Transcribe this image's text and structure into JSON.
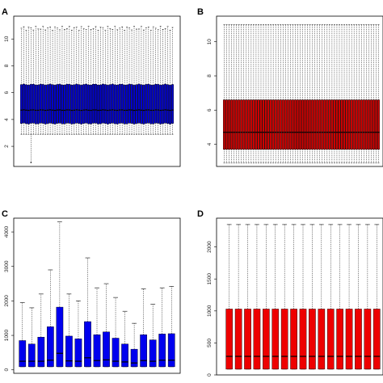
{
  "chart_data": [
    {
      "panel_label": "A",
      "type": "boxplot",
      "color": "#0000cc",
      "ylim": [
        0.5,
        11.7
      ],
      "yticks": [
        2,
        4,
        6,
        8,
        10
      ],
      "grid": false,
      "box_count": 64,
      "median": 4.7,
      "q1": 3.7,
      "q3": 6.6,
      "whisker_low": 2.9,
      "whisker_high": 10.8,
      "outlier_min": 0.8
    },
    {
      "panel_label": "B",
      "type": "boxplot",
      "color": "#cc0000",
      "ylim": [
        2.7,
        11.5
      ],
      "yticks": [
        4,
        6,
        8,
        10
      ],
      "grid": false,
      "box_count": 64,
      "median": 4.7,
      "q1": 3.7,
      "q3": 6.6,
      "whisker_low": 2.9,
      "whisker_high": 11.0
    },
    {
      "panel_label": "C",
      "type": "boxplot",
      "color": "#0000ee",
      "ylim": [
        -100,
        4400
      ],
      "yticks": [
        0,
        1000,
        2000,
        3000,
        4000
      ],
      "grid": false,
      "boxes": [
        {
          "q3": 850,
          "median": 250,
          "q1": 90,
          "whisker_high": 1950
        },
        {
          "q3": 750,
          "median": 250,
          "q1": 90,
          "whisker_high": 1800
        },
        {
          "q3": 950,
          "median": 250,
          "q1": 90,
          "whisker_high": 2200
        },
        {
          "q3": 1250,
          "median": 280,
          "q1": 90,
          "whisker_high": 2900
        },
        {
          "q3": 1820,
          "median": 480,
          "q1": 90,
          "whisker_high": 4300
        },
        {
          "q3": 980,
          "median": 260,
          "q1": 90,
          "whisker_high": 2200
        },
        {
          "q3": 900,
          "median": 250,
          "q1": 90,
          "whisker_high": 2000
        },
        {
          "q3": 1400,
          "median": 350,
          "q1": 90,
          "whisker_high": 3250
        },
        {
          "q3": 1020,
          "median": 270,
          "q1": 90,
          "whisker_high": 2380
        },
        {
          "q3": 1100,
          "median": 290,
          "q1": 90,
          "whisker_high": 2500
        },
        {
          "q3": 920,
          "median": 250,
          "q1": 90,
          "whisker_high": 2100
        },
        {
          "q3": 750,
          "median": 230,
          "q1": 90,
          "whisker_high": 1700
        },
        {
          "q3": 600,
          "median": 200,
          "q1": 90,
          "whisker_high": 1350
        },
        {
          "q3": 1020,
          "median": 270,
          "q1": 90,
          "whisker_high": 2350
        },
        {
          "q3": 870,
          "median": 250,
          "q1": 90,
          "whisker_high": 1900
        },
        {
          "q3": 1040,
          "median": 280,
          "q1": 90,
          "whisker_high": 2380
        },
        {
          "q3": 1050,
          "median": 280,
          "q1": 90,
          "whisker_high": 2420
        }
      ]
    },
    {
      "panel_label": "D",
      "type": "boxplot",
      "color": "#ee0000",
      "ylim": [
        0,
        2450
      ],
      "yticks": [
        0,
        500,
        1000,
        1500,
        2000
      ],
      "grid": false,
      "box_count": 17,
      "median": 290,
      "q1": 90,
      "q3": 1030,
      "whisker_low": 90,
      "whisker_high": 2350
    }
  ]
}
